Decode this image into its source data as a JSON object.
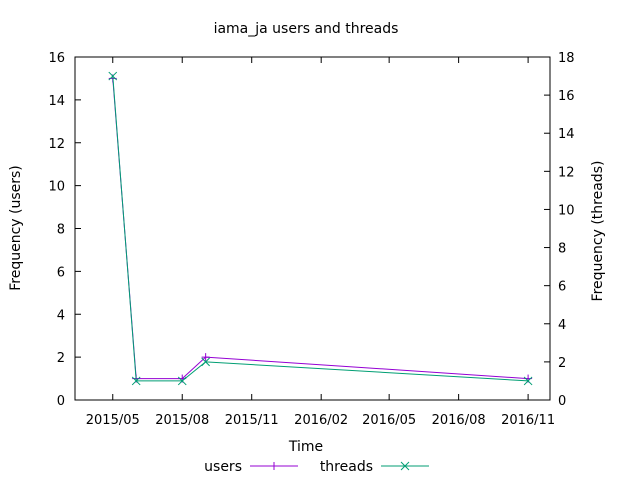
{
  "chart_data": {
    "type": "line",
    "title": "iama_ja users and threads",
    "xlabel": "Time",
    "ylabel": "Frequency (users)",
    "y2label": "Frequency (threads)",
    "x_ticks": [
      "2015/05",
      "2015/08",
      "2015/11",
      "2016/02",
      "2016/05",
      "2016/08",
      "2016/11"
    ],
    "xlim": [
      "2015-03-12",
      "2016-11-30"
    ],
    "ylim": [
      0,
      16
    ],
    "y2lim": [
      0,
      18
    ],
    "y_ticks": [
      0,
      2,
      4,
      6,
      8,
      10,
      12,
      14,
      16
    ],
    "y2_ticks": [
      0,
      2,
      4,
      6,
      8,
      10,
      12,
      14,
      16,
      18
    ],
    "legend_position": "bottom",
    "series": [
      {
        "name": "users",
        "axis": "y",
        "color": "#9400d3",
        "marker": "plus",
        "points": [
          {
            "x": "2015-05-01",
            "y": 15
          },
          {
            "x": "2015-06-01",
            "y": 1
          },
          {
            "x": "2015-08-01",
            "y": 1
          },
          {
            "x": "2015-09-01",
            "y": 2
          },
          {
            "x": "2016-11-01",
            "y": 1
          }
        ]
      },
      {
        "name": "threads",
        "axis": "y2",
        "color": "#009e73",
        "marker": "cross",
        "points": [
          {
            "x": "2015-05-01",
            "y": 17
          },
          {
            "x": "2015-06-01",
            "y": 1
          },
          {
            "x": "2015-08-01",
            "y": 1
          },
          {
            "x": "2015-09-01",
            "y": 2
          },
          {
            "x": "2016-11-01",
            "y": 1
          }
        ]
      }
    ]
  }
}
